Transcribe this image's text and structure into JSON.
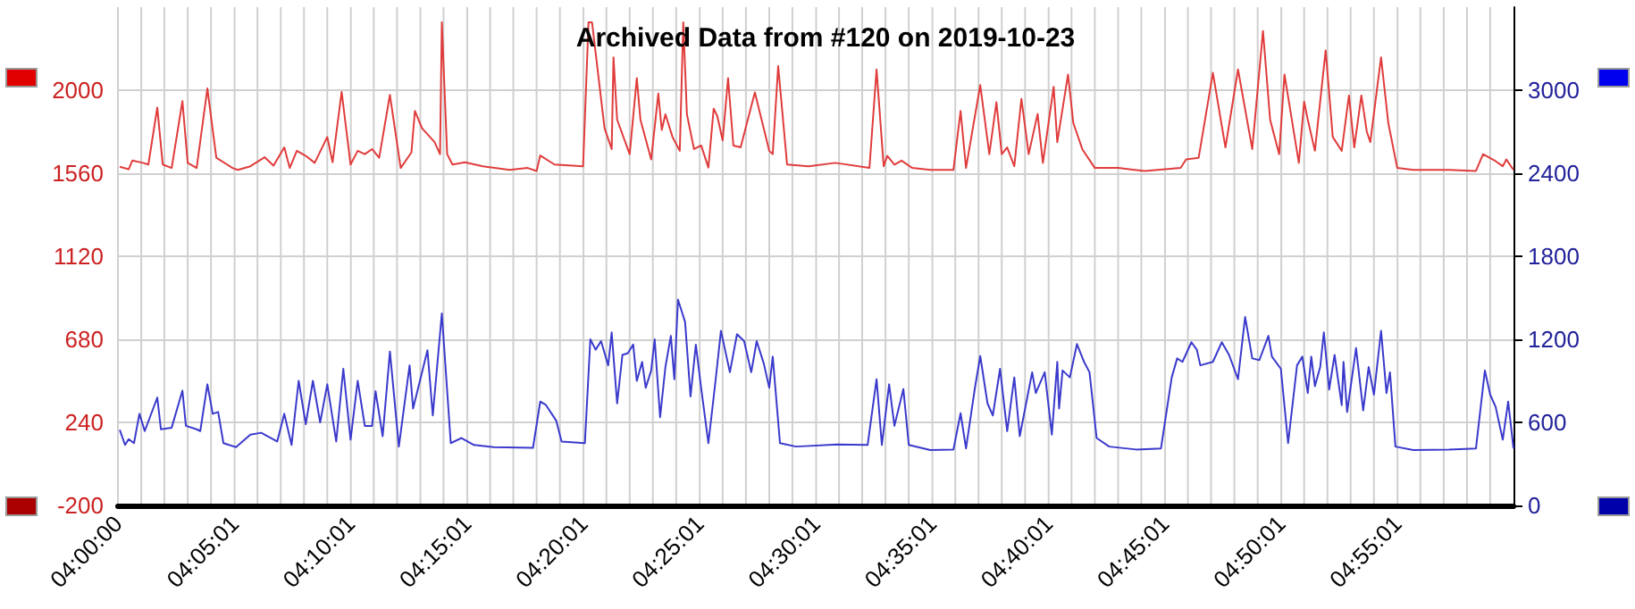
{
  "chart_data": {
    "type": "line",
    "title": "Archived Data from #120 on 2019-10-23",
    "xlim": [
      4,
      5
    ],
    "xticks": [
      {
        "value": 4,
        "label": "04:00:00"
      },
      {
        "value": 4.0167,
        "label": null
      },
      {
        "value": 4.0333,
        "label": null
      },
      {
        "value": 4.05,
        "label": null
      },
      {
        "value": 4.0667,
        "label": null
      },
      {
        "value": 4.0836,
        "label": "04:05:01"
      },
      {
        "value": 4.1,
        "label": null
      },
      {
        "value": 4.1167,
        "label": null
      },
      {
        "value": 4.1333,
        "label": null
      },
      {
        "value": 4.15,
        "label": null
      },
      {
        "value": 4.1669,
        "label": "04:10:01"
      },
      {
        "value": 4.1833,
        "label": null
      },
      {
        "value": 4.2,
        "label": null
      },
      {
        "value": 4.2167,
        "label": null
      },
      {
        "value": 4.2333,
        "label": null
      },
      {
        "value": 4.2503,
        "label": "04:15:01"
      },
      {
        "value": 4.2667,
        "label": null
      },
      {
        "value": 4.2833,
        "label": null
      },
      {
        "value": 4.3,
        "label": null
      },
      {
        "value": 4.3167,
        "label": null
      },
      {
        "value": 4.3336,
        "label": "04:20:01"
      },
      {
        "value": 4.35,
        "label": null
      },
      {
        "value": 4.3667,
        "label": null
      },
      {
        "value": 4.3833,
        "label": null
      },
      {
        "value": 4.4,
        "label": null
      },
      {
        "value": 4.4169,
        "label": "04:25:01"
      },
      {
        "value": 4.4333,
        "label": null
      },
      {
        "value": 4.45,
        "label": null
      },
      {
        "value": 4.4667,
        "label": null
      },
      {
        "value": 4.4833,
        "label": null
      },
      {
        "value": 4.5003,
        "label": "04:30:01"
      },
      {
        "value": 4.5167,
        "label": null
      },
      {
        "value": 4.5333,
        "label": null
      },
      {
        "value": 4.55,
        "label": null
      },
      {
        "value": 4.5667,
        "label": null
      },
      {
        "value": 4.5836,
        "label": "04:35:01"
      },
      {
        "value": 4.6,
        "label": null
      },
      {
        "value": 4.6167,
        "label": null
      },
      {
        "value": 4.6333,
        "label": null
      },
      {
        "value": 4.65,
        "label": null
      },
      {
        "value": 4.6669,
        "label": "04:40:01"
      },
      {
        "value": 4.6833,
        "label": null
      },
      {
        "value": 4.7,
        "label": null
      },
      {
        "value": 4.7167,
        "label": null
      },
      {
        "value": 4.7333,
        "label": null
      },
      {
        "value": 4.7503,
        "label": "04:45:01"
      },
      {
        "value": 4.7667,
        "label": null
      },
      {
        "value": 4.7833,
        "label": null
      },
      {
        "value": 4.8,
        "label": null
      },
      {
        "value": 4.8167,
        "label": null
      },
      {
        "value": 4.8336,
        "label": "04:50:01"
      },
      {
        "value": 4.85,
        "label": null
      },
      {
        "value": 4.8667,
        "label": null
      },
      {
        "value": 4.8833,
        "label": null
      },
      {
        "value": 4.9,
        "label": null
      },
      {
        "value": 4.9169,
        "label": "04:55:01"
      },
      {
        "value": 4.9333,
        "label": null
      },
      {
        "value": 4.95,
        "label": null
      },
      {
        "value": 4.9667,
        "label": null
      },
      {
        "value": 4.9833,
        "label": null
      }
    ],
    "ylim": [
      -200,
      2440
    ],
    "yticks": [
      -200,
      240,
      680,
      1120,
      1560,
      2000
    ],
    "y2lim": [
      0,
      3600
    ],
    "y2ticks": [
      0,
      600,
      1200,
      1800,
      2400,
      3000
    ],
    "grid": true,
    "marker": "none",
    "line_style": "solid",
    "series": [
      {
        "color": "#e03c3c",
        "x": [
          4.0013,
          4.0077,
          4.0103,
          4.0179,
          4.0218,
          4.0282,
          4.0321,
          4.0385,
          4.0462,
          4.05,
          4.0564,
          4.0641,
          4.0705,
          4.0821,
          4.0859,
          4.0949,
          4.1051,
          4.1115,
          4.1192,
          4.1231,
          4.1282,
          4.1346,
          4.141,
          4.15,
          4.1538,
          4.1603,
          4.1667,
          4.1718,
          4.1769,
          4.1821,
          4.1872,
          4.1949,
          4.2026,
          4.2103,
          4.2128,
          4.2179,
          4.2269,
          4.2308,
          4.2321,
          4.2359,
          4.2397,
          4.2487,
          4.2615,
          4.2808,
          4.2936,
          4.3,
          4.3026,
          4.3128,
          4.3333,
          4.3372,
          4.3397,
          4.3487,
          4.3538,
          4.3551,
          4.3577,
          4.3667,
          4.3718,
          4.3744,
          4.3821,
          4.3872,
          4.3897,
          4.3923,
          4.3974,
          4.4026,
          4.4051,
          4.4077,
          4.4128,
          4.4179,
          4.4231,
          4.4269,
          4.4295,
          4.4333,
          4.4372,
          4.441,
          4.4462,
          4.4564,
          4.4667,
          4.4692,
          4.4731,
          4.4795,
          4.4949,
          4.5141,
          4.5385,
          4.5436,
          4.5487,
          4.5513,
          4.5564,
          4.5615,
          4.5692,
          4.5821,
          4.5987,
          4.6038,
          4.6077,
          4.6179,
          4.6244,
          4.6295,
          4.6333,
          4.6372,
          4.6423,
          4.6474,
          4.6526,
          4.659,
          4.6628,
          4.6705,
          4.6731,
          4.6808,
          4.6846,
          4.691,
          4.7,
          4.7167,
          4.7359,
          4.7615,
          4.7654,
          4.7744,
          4.7846,
          4.7936,
          4.8026,
          4.8128,
          4.8205,
          4.8256,
          4.8321,
          4.8359,
          4.8462,
          4.85,
          4.8526,
          4.8577,
          4.8654,
          4.8705,
          4.8769,
          4.8821,
          4.8859,
          4.891,
          4.8949,
          4.8974,
          4.9051,
          4.9103,
          4.9167,
          4.9282,
          4.9538,
          4.9731,
          4.9782,
          4.9872,
          4.9923,
          4.9949,
          5.0
        ],
        "values": [
          1594,
          1581,
          1627,
          1615,
          1606,
          1908,
          1606,
          1588,
          1942,
          1615,
          1588,
          2009,
          1642,
          1588,
          1578,
          1597,
          1645,
          1600,
          1697,
          1588,
          1679,
          1652,
          1615,
          1752,
          1618,
          1991,
          1606,
          1679,
          1661,
          1688,
          1642,
          1975,
          1588,
          1670,
          1890,
          1798,
          1725,
          1661,
          2360,
          1661,
          1606,
          1618,
          1597,
          1578,
          1588,
          1572,
          1654,
          1606,
          1597,
          2360,
          2360,
          1798,
          1688,
          2174,
          1844,
          1661,
          2064,
          1844,
          1633,
          1982,
          1789,
          1872,
          1752,
          1679,
          2360,
          1872,
          1688,
          1707,
          1590,
          1902,
          1863,
          1734,
          2064,
          1707,
          1697,
          1988,
          1679,
          1661,
          2128,
          1606,
          1597,
          1615,
          1588,
          2110,
          1597,
          1652,
          1606,
          1627,
          1588,
          1578,
          1578,
          1890,
          1588,
          2027,
          1661,
          1936,
          1661,
          1697,
          1597,
          1954,
          1661,
          1874,
          1615,
          2018,
          1725,
          2083,
          1826,
          1688,
          1588,
          1588,
          1572,
          1588,
          1633,
          1642,
          2092,
          1697,
          2110,
          1688,
          2314,
          1844,
          1661,
          2083,
          1615,
          1939,
          1844,
          1679,
          2211,
          1752,
          1679,
          1972,
          1697,
          1972,
          1780,
          1725,
          2174,
          1826,
          1588,
          1578,
          1578,
          1572,
          1661,
          1624,
          1597,
          1633,
          1578
        ]
      },
      {
        "color": "#3a3acc",
        "axis": "y2",
        "x": [
          4.0013,
          4.0051,
          4.0077,
          4.0115,
          4.0154,
          4.0192,
          4.0282,
          4.0308,
          4.0385,
          4.0462,
          4.0487,
          4.0564,
          4.059,
          4.0641,
          4.0679,
          4.0718,
          4.0756,
          4.0846,
          4.0949,
          4.1026,
          4.1141,
          4.1192,
          4.1244,
          4.1295,
          4.1346,
          4.1397,
          4.1449,
          4.15,
          4.1564,
          4.1615,
          4.1667,
          4.1718,
          4.1769,
          4.1821,
          4.1846,
          4.1897,
          4.1949,
          4.2013,
          4.209,
          4.2115,
          4.2218,
          4.2256,
          4.2321,
          4.2385,
          4.2462,
          4.2551,
          4.2692,
          4.2974,
          4.3026,
          4.3064,
          4.3141,
          4.3179,
          4.3346,
          4.3385,
          4.3423,
          4.3462,
          4.3513,
          4.3538,
          4.3577,
          4.3615,
          4.3654,
          4.3692,
          4.3718,
          4.3756,
          4.3782,
          4.3821,
          4.3846,
          4.3885,
          4.3923,
          4.3962,
          4.3987,
          4.4013,
          4.4064,
          4.4103,
          4.4141,
          4.4179,
          4.4231,
          4.4282,
          4.4321,
          4.4385,
          4.4436,
          4.4487,
          4.4538,
          4.4577,
          4.4628,
          4.4667,
          4.4692,
          4.4744,
          4.4859,
          4.5154,
          4.5372,
          4.5436,
          4.5474,
          4.5526,
          4.5564,
          4.5628,
          4.5667,
          4.5821,
          4.5987,
          4.6038,
          4.6077,
          4.6141,
          4.6179,
          4.6231,
          4.6269,
          4.6321,
          4.6372,
          4.6423,
          4.6462,
          4.6551,
          4.6577,
          4.6641,
          4.6692,
          4.6731,
          4.6744,
          4.6769,
          4.6821,
          4.6872,
          4.6923,
          4.6962,
          4.7013,
          4.7103,
          4.7295,
          4.7474,
          4.7551,
          4.759,
          4.7628,
          4.7692,
          4.7731,
          4.7756,
          4.7846,
          4.791,
          4.7962,
          4.8026,
          4.8077,
          4.8128,
          4.8179,
          4.8244,
          4.8269,
          4.8333,
          4.8385,
          4.8449,
          4.8487,
          4.8526,
          4.8551,
          4.8577,
          4.8615,
          4.8641,
          4.8679,
          4.8718,
          4.8769,
          4.8782,
          4.8808,
          4.8872,
          4.8923,
          4.8962,
          4.9,
          4.9051,
          4.909,
          4.9115,
          4.9154,
          4.9282,
          4.9538,
          4.9731,
          4.9795,
          4.9833,
          4.9872,
          4.9923,
          4.9962,
          5.0
        ],
        "values": [
          546,
          437,
          479,
          450,
          662,
          537,
          779,
          550,
          562,
          829,
          575,
          550,
          537,
          875,
          662,
          675,
          450,
          421,
          512,
          525,
          462,
          662,
          437,
          900,
          587,
          900,
          600,
          875,
          462,
          987,
          475,
          900,
          575,
          575,
          825,
          500,
          1112,
          425,
          1012,
          700,
          1121,
          650,
          1387,
          450,
          487,
          437,
          421,
          416,
          750,
          729,
          612,
          462,
          450,
          1200,
          1125,
          1187,
          1012,
          1250,
          737,
          1087,
          1100,
          1162,
          900,
          1037,
          850,
          975,
          1200,
          637,
          1000,
          1225,
          912,
          1487,
          1325,
          787,
          1162,
          850,
          450,
          900,
          1262,
          962,
          1237,
          1187,
          962,
          1187,
          1025,
          850,
          1075,
          450,
          425,
          441,
          437,
          912,
          437,
          875,
          575,
          841,
          437,
          400,
          404,
          666,
          412,
          850,
          1079,
          737,
          650,
          987,
          537,
          925,
          500,
          962,
          812,
          962,
          512,
          1037,
          700,
          975,
          925,
          1166,
          1037,
          962,
          487,
          425,
          404,
          412,
          925,
          1062,
          1037,
          1179,
          1125,
          1012,
          1037,
          1179,
          1087,
          912,
          1362,
          1062,
          1050,
          1225,
          1075,
          987,
          450,
          1012,
          1075,
          812,
          1075,
          862,
          1000,
          1250,
          837,
          1087,
          725,
          1037,
          675,
          1137,
          687,
          1000,
          800,
          1262,
          812,
          962,
          425,
          400,
          404,
          412,
          975,
          800,
          712,
          475,
          750,
          412
        ]
      }
    ]
  }
}
